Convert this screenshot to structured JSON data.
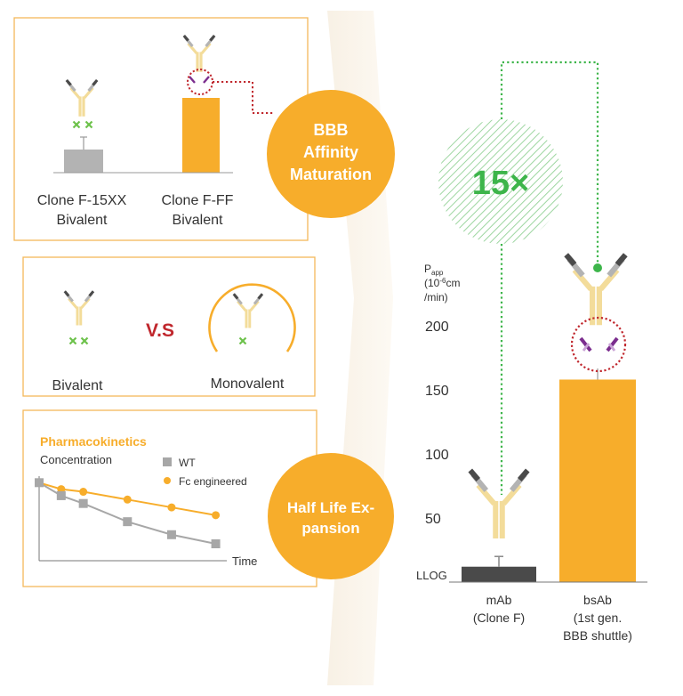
{
  "affinity_panel": {
    "left_clone": "Clone F-15XX",
    "left_valency": "Bivalent",
    "right_clone": "Clone F-FF",
    "right_valency": "Bivalent"
  },
  "valency_panel": {
    "left_label": "Bivalent",
    "vs_label": "V.S",
    "right_label": "Monovalent"
  },
  "pk_panel": {
    "title": "Pharmacokinetics",
    "ylabel": "Concentration",
    "xlabel": "Time",
    "legend_wt": "WT",
    "legend_fc": "Fc engineered"
  },
  "circles": {
    "affinity": [
      "BBB",
      "Affinity",
      "Maturation"
    ],
    "halflife": [
      "Half Life Ex-",
      "pansion"
    ]
  },
  "fold_label": "15×",
  "colors": {
    "orange": "#F7AD2B",
    "green": "#3DB54A",
    "grey": "#B3B3B3",
    "dark": "#4A4A4A",
    "red": "#C0272D",
    "purple": "#7B2D8E",
    "antibody": "#F3DC9A"
  },
  "chart_data": {
    "type": "bar",
    "ylabel": [
      "P",
      "app",
      "(10",
      "-6",
      "cm",
      "/min)"
    ],
    "yticks": [
      50,
      100,
      150,
      200
    ],
    "baseline_label": "LLOG",
    "ylim": [
      0,
      230
    ],
    "categories": [
      [
        "mAb",
        "(Clone F)"
      ],
      [
        "bsAb",
        "(1st gen.",
        "BBB shuttle)"
      ]
    ],
    "values": [
      12,
      158
    ],
    "errors": [
      8,
      0
    ]
  },
  "pk_chart": {
    "type": "line",
    "series": [
      {
        "name": "WT",
        "marker": "square",
        "x": [
          0,
          1,
          2,
          4,
          6,
          8
        ],
        "y": [
          100,
          90,
          84,
          70,
          60,
          53
        ]
      },
      {
        "name": "Fc engineered",
        "marker": "circle",
        "x": [
          0,
          1,
          2,
          4,
          6,
          8
        ],
        "y": [
          100,
          95,
          93,
          87,
          81,
          75
        ]
      }
    ],
    "xlim": [
      0,
      8.5
    ],
    "ylim": [
      40,
      105
    ]
  }
}
